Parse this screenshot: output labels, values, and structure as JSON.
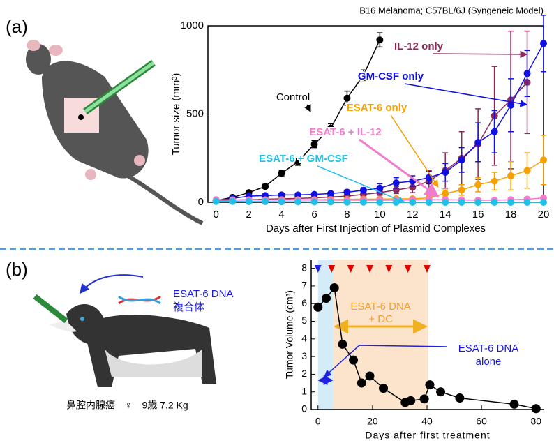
{
  "panel_labels": [
    "(a)",
    "(b)"
  ],
  "illustration_texts": [
    "ESAT-6 DNA",
    "複合体",
    "鼻腔内腺癌　♀　9歳 7.2 Kg"
  ],
  "chart_data": [
    {
      "type": "line",
      "subtitle": "B16 Melanoma; C57BL/6J (Syngeneic Model)",
      "x_label": "Days after First Injection of Plasmid Complexes",
      "y_label": "Tumor size (mm³)",
      "xlim": [
        -0.5,
        20
      ],
      "ylim": [
        0,
        1000
      ],
      "xticks": [
        0,
        2,
        4,
        6,
        8,
        10,
        12,
        14,
        16,
        18,
        20
      ],
      "yticks": [
        0,
        500,
        1000
      ],
      "x": [
        0,
        1,
        2,
        3,
        4,
        5,
        6,
        7,
        8,
        9,
        10,
        11,
        12,
        13,
        14,
        15,
        16,
        17,
        18,
        19,
        20
      ],
      "series": [
        {
          "name": "Control",
          "color": "#000000",
          "values": [
            10,
            28,
            55,
            90,
            165,
            230,
            330,
            420,
            590,
            720,
            920,
            null,
            null,
            null,
            null,
            null,
            null,
            null,
            null,
            null,
            null
          ],
          "errors": [
            3,
            8,
            10,
            12,
            15,
            20,
            20,
            25,
            40,
            30,
            40,
            null,
            null,
            null,
            null,
            null,
            null,
            null,
            null,
            null,
            null
          ]
        },
        {
          "name": "IL-12 only",
          "color": "#8b2a5a",
          "values": [
            10,
            12,
            15,
            18,
            20,
            22,
            25,
            30,
            35,
            45,
            55,
            70,
            85,
            120,
            180,
            250,
            330,
            490,
            580,
            680,
            null
          ],
          "errors": [
            3,
            3,
            4,
            4,
            5,
            5,
            6,
            8,
            10,
            12,
            15,
            20,
            30,
            60,
            100,
            150,
            200,
            280,
            390,
            290,
            null
          ]
        },
        {
          "name": "GM-CSF only",
          "color": "#1010e0",
          "values": [
            10,
            22,
            35,
            38,
            42,
            42,
            45,
            50,
            58,
            68,
            80,
            110,
            120,
            140,
            170,
            240,
            340,
            400,
            550,
            730,
            900
          ],
          "errors": [
            3,
            5,
            6,
            6,
            7,
            7,
            8,
            10,
            12,
            15,
            25,
            30,
            30,
            35,
            50,
            70,
            110,
            120,
            150,
            130,
            160
          ]
        },
        {
          "name": "ESAT-6 only",
          "color": "#f5a000",
          "values": [
            12,
            13,
            14,
            14,
            15,
            15,
            15,
            16,
            17,
            18,
            18,
            20,
            20,
            25,
            50,
            70,
            100,
            120,
            150,
            180,
            240
          ],
          "errors": [
            3,
            3,
            3,
            3,
            3,
            3,
            3,
            4,
            4,
            4,
            5,
            5,
            6,
            10,
            20,
            30,
            40,
            50,
            80,
            100,
            140
          ]
        },
        {
          "name": "ESAT-6 + IL-12",
          "color": "#f07ccc",
          "values": [
            15,
            14,
            14,
            13,
            13,
            13,
            13,
            12,
            12,
            12,
            12,
            12,
            14,
            15,
            15,
            14,
            12,
            12,
            15,
            18,
            25
          ]
        },
        {
          "name": "ESAT-6 + GM-CSF",
          "color": "#20c0e8",
          "values": [
            5,
            5,
            4,
            4,
            3,
            3,
            2,
            2,
            1,
            1,
            0,
            0,
            0,
            0,
            0,
            0,
            0,
            0,
            0,
            0,
            0
          ]
        }
      ]
    },
    {
      "type": "line",
      "x_label": "Days after first treatment",
      "y_label": "Tumor Volume (cm³)",
      "xlim": [
        -2.5,
        83
      ],
      "ylim": [
        0,
        8.5
      ],
      "xticks": [
        0,
        20,
        40,
        60,
        80
      ],
      "yticks": [
        0,
        1,
        2,
        3,
        4,
        5,
        6,
        7,
        8
      ],
      "x": [
        0,
        3,
        6,
        9,
        13,
        16,
        19,
        24,
        32,
        34,
        39,
        41,
        45,
        52,
        72,
        80
      ],
      "values": [
        5.8,
        6.3,
        6.9,
        3.7,
        2.8,
        1.5,
        1.9,
        1.2,
        0.4,
        0.5,
        0.6,
        1.4,
        1.0,
        0.65,
        0.3,
        0.05
      ],
      "color": "#000000",
      "regions": [
        {
          "x": [
            0,
            5.5
          ],
          "color": "#d4ecf7",
          "label": [
            "ESAT-6 DNA",
            "alone"
          ],
          "label_color": "#1a1adf"
        },
        {
          "x": [
            5.5,
            40.5
          ],
          "color": "#fbe3cc",
          "label": [
            "ESAT-6 DNA",
            "+ DC"
          ],
          "label_color": "#f0a030"
        }
      ],
      "treatments": {
        "x": [
          0,
          5,
          12,
          19,
          26,
          33,
          40
        ],
        "colors": [
          "#2020e0",
          "#e00000",
          "#e00000",
          "#e00000",
          "#e00000",
          "#e00000",
          "#e00000"
        ]
      }
    }
  ]
}
